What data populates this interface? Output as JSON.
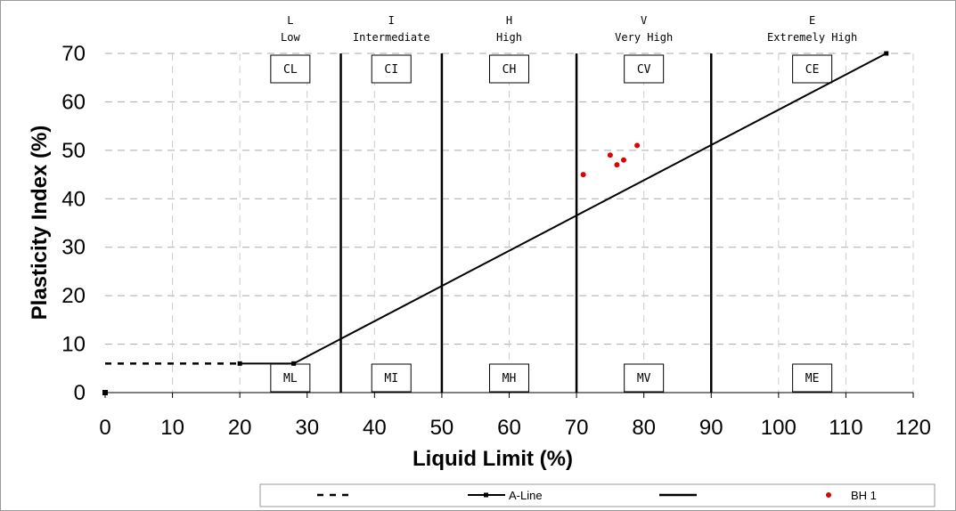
{
  "chart_data": {
    "type": "scatter",
    "xlabel": "Liquid Limit (%)",
    "ylabel": "Plasticity Index (%)",
    "xlim": [
      0,
      120
    ],
    "ylim": [
      0,
      70
    ],
    "x_ticks": [
      0,
      10,
      20,
      30,
      40,
      50,
      60,
      70,
      80,
      90,
      100,
      110,
      120
    ],
    "y_ticks": [
      0,
      10,
      20,
      30,
      40,
      50,
      60,
      70
    ],
    "grid": "dashed",
    "zones": [
      {
        "code": "L",
        "name": "Low",
        "x_from": 20,
        "x_to": 35,
        "upper": "CL",
        "lower": "ML"
      },
      {
        "code": "I",
        "name": "Intermediate",
        "x_from": 35,
        "x_to": 50,
        "upper": "CI",
        "lower": "MI"
      },
      {
        "code": "H",
        "name": "High",
        "x_from": 50,
        "x_to": 70,
        "upper": "CH",
        "lower": "MH"
      },
      {
        "code": "V",
        "name": "Very High",
        "x_from": 70,
        "x_to": 90,
        "upper": "CV",
        "lower": "MV"
      },
      {
        "code": "E",
        "name": "Extremely High",
        "x_from": 90,
        "x_to": 120,
        "upper": "CE",
        "lower": "ME"
      }
    ],
    "boundaries": [
      35,
      50,
      70,
      90
    ],
    "series": [
      {
        "style": "dashed",
        "points": [
          [
            0,
            6
          ],
          [
            20,
            6
          ]
        ]
      },
      {
        "name": "A-Line",
        "style": "line",
        "points": [
          [
            20,
            6
          ],
          [
            28,
            6
          ],
          [
            116,
            70
          ]
        ]
      },
      {
        "style": "solid-boundary",
        "points": []
      },
      {
        "name": "BH 1",
        "style": "scatter",
        "color": "#e00000",
        "points": [
          [
            71,
            45
          ],
          [
            75,
            49
          ],
          [
            76,
            47
          ],
          [
            77,
            48
          ],
          [
            79,
            51
          ]
        ]
      }
    ],
    "origin_marker": [
      0,
      0
    ],
    "legend": {
      "position": "bottom",
      "entries": [
        {
          "label": "",
          "style": "dashed"
        },
        {
          "label": "A-Line",
          "style": "line-marker"
        },
        {
          "label": "",
          "style": "solid"
        },
        {
          "label": "BH 1",
          "style": "dot",
          "color": "#e00000"
        }
      ]
    }
  }
}
